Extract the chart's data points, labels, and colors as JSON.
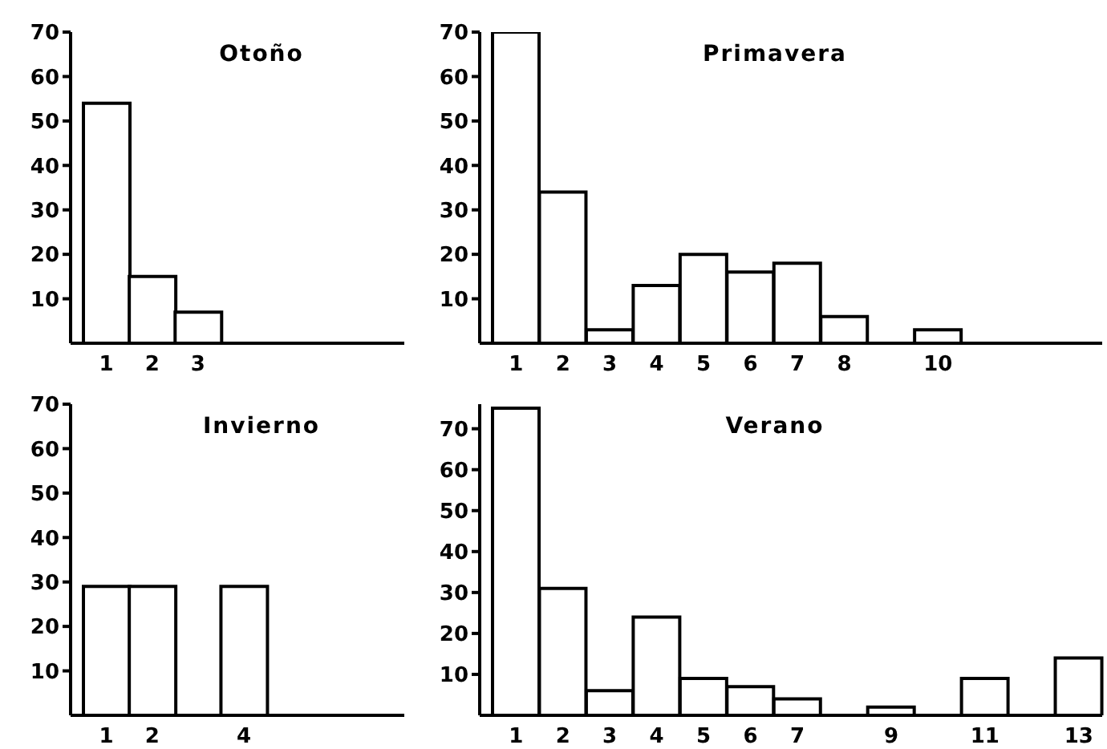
{
  "chart_data": [
    {
      "type": "bar",
      "title": "Otoño",
      "categories": [
        "1",
        "2",
        "3",
        null,
        null,
        null,
        null
      ],
      "values": [
        54,
        15,
        7,
        null,
        null,
        null,
        null
      ],
      "color": "#ffffff",
      "ylim": [
        0,
        70
      ],
      "yticks": [
        10,
        20,
        30,
        40,
        50,
        60,
        70
      ],
      "grid": false,
      "legend": false
    },
    {
      "type": "bar",
      "title": "Primavera",
      "categories": [
        "1",
        "2",
        "3",
        "4",
        "5",
        "6",
        "7",
        "8",
        null,
        "10",
        null,
        null,
        null
      ],
      "values": [
        70,
        34,
        3,
        13,
        20,
        16,
        18,
        6,
        null,
        3,
        null,
        null,
        null
      ],
      "color": "#ffffff",
      "ylim": [
        0,
        70
      ],
      "yticks": [
        10,
        20,
        30,
        40,
        50,
        60,
        70
      ],
      "grid": false,
      "legend": false
    },
    {
      "type": "bar",
      "title": "Invierno",
      "categories": [
        "1",
        "2",
        null,
        "4",
        null,
        null,
        null
      ],
      "values": [
        29,
        29,
        null,
        29,
        null,
        null,
        null
      ],
      "color": "#ffffff",
      "ylim": [
        0,
        70
      ],
      "yticks": [
        10,
        20,
        30,
        40,
        50,
        60,
        70
      ],
      "grid": false,
      "legend": false
    },
    {
      "type": "bar",
      "title": "Verano",
      "categories": [
        "1",
        "2",
        "3",
        "4",
        "5",
        "6",
        "7",
        null,
        "9",
        null,
        "11",
        null,
        "13"
      ],
      "values": [
        75,
        31,
        6,
        24,
        9,
        7,
        4,
        null,
        2,
        null,
        9,
        null,
        14
      ],
      "color": "#ffffff",
      "ylim": [
        0,
        76
      ],
      "yticks": [
        10,
        20,
        30,
        40,
        50,
        60,
        70
      ],
      "grid": false,
      "legend": false
    }
  ]
}
